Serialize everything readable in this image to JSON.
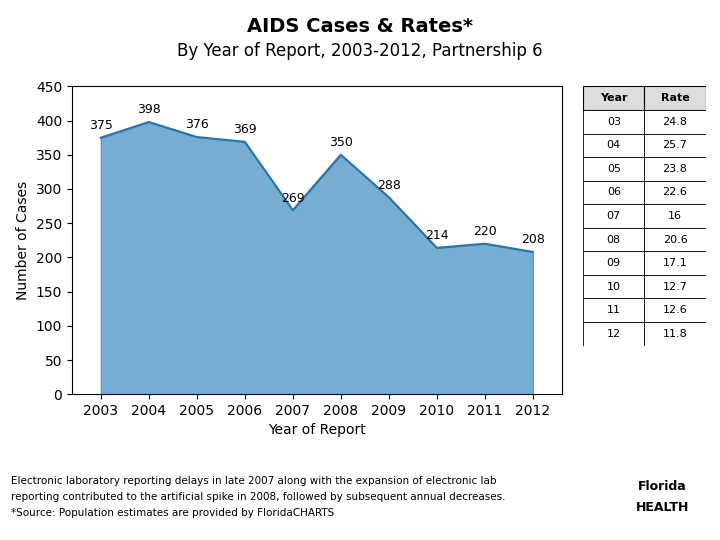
{
  "chart_data": {
    "type": "area",
    "title": "AIDS Cases & Rates*",
    "subtitle": "By Year of Report, 2003-2012, Partnership 6",
    "xlabel": "Year of Report",
    "ylabel": "Number of Cases",
    "x": [
      2003,
      2004,
      2005,
      2006,
      2007,
      2008,
      2009,
      2010,
      2011,
      2012
    ],
    "values": [
      375,
      398,
      376,
      369,
      269,
      350,
      288,
      214,
      220,
      208
    ],
    "xlim": [
      2002.4,
      2012.6
    ],
    "xticks": [
      2003,
      2004,
      2005,
      2006,
      2007,
      2008,
      2009,
      2010,
      2011,
      2012
    ],
    "ylim": [
      0,
      450
    ],
    "yticks": [
      0,
      50,
      100,
      150,
      200,
      250,
      300,
      350,
      400,
      450
    ],
    "data_labels": true,
    "grid": false,
    "table": {
      "columns": [
        "Year",
        "Rate"
      ],
      "rows": [
        [
          "03",
          24.8
        ],
        [
          "04",
          25.7
        ],
        [
          "05",
          23.8
        ],
        [
          "06",
          22.6
        ],
        [
          "07",
          16
        ],
        [
          "08",
          20.6
        ],
        [
          "09",
          17.1
        ],
        [
          "10",
          12.7
        ],
        [
          "11",
          12.6
        ],
        [
          "12",
          11.8
        ]
      ]
    },
    "notes": [
      "Electronic laboratory reporting delays in late 2007 along with the expansion of electronic lab",
      "reporting contributed to the artificial spike in 2008, followed by subsequent annual decreases.",
      "*Source: Population estimates are provided by FloridaCHARTS"
    ],
    "annotations": [
      "Florida",
      "HEALTH"
    ]
  }
}
